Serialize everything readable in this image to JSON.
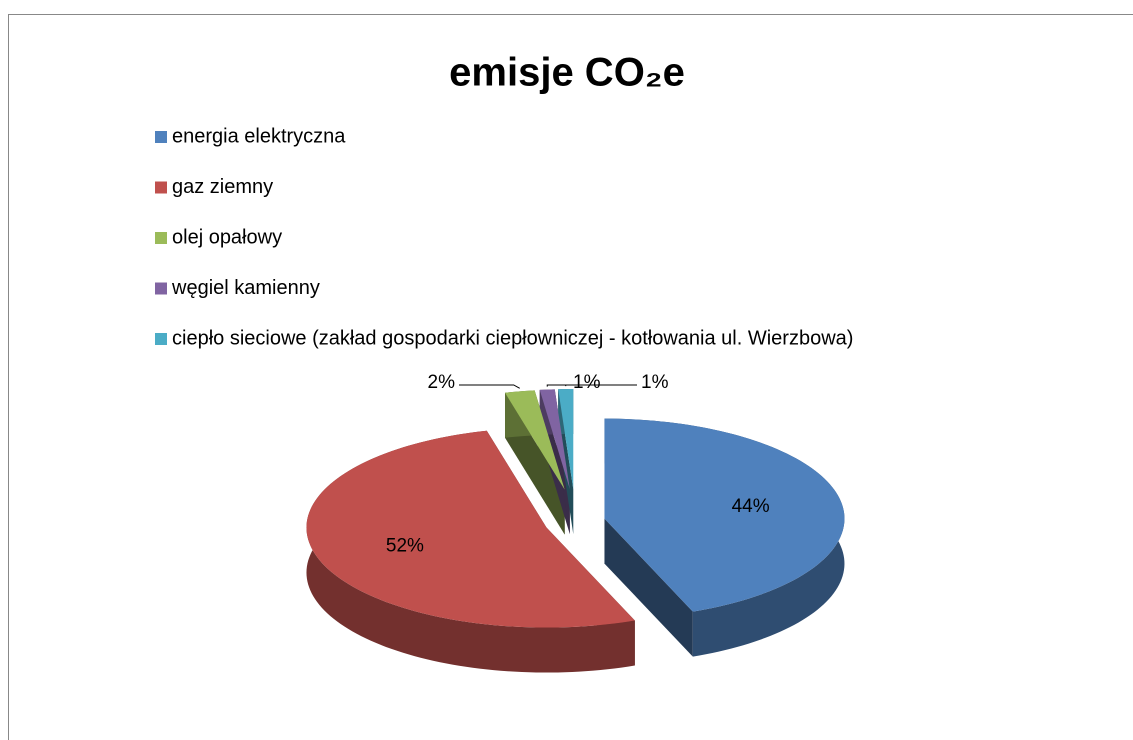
{
  "chart_data": {
    "type": "pie3d",
    "title": "emisje CO₂e",
    "categories": [
      "energia elektryczna",
      "gaz ziemny",
      "olej opałowy",
      "węgiel kamienny",
      "ciepło sieciowe (zakład gospodarki ciepłowniczej - kotłowania ul. Wierzbowa)"
    ],
    "series": [
      {
        "values": [
          44,
          52,
          2,
          1,
          1
        ],
        "value_labels": [
          "44%",
          "52%",
          "2%",
          "1%",
          "1%"
        ],
        "colors": [
          "#4f81bd",
          "#c0504d",
          "#9bbb59",
          "#8064a2",
          "#4bacc6"
        ]
      }
    ],
    "legend": "top-left"
  }
}
